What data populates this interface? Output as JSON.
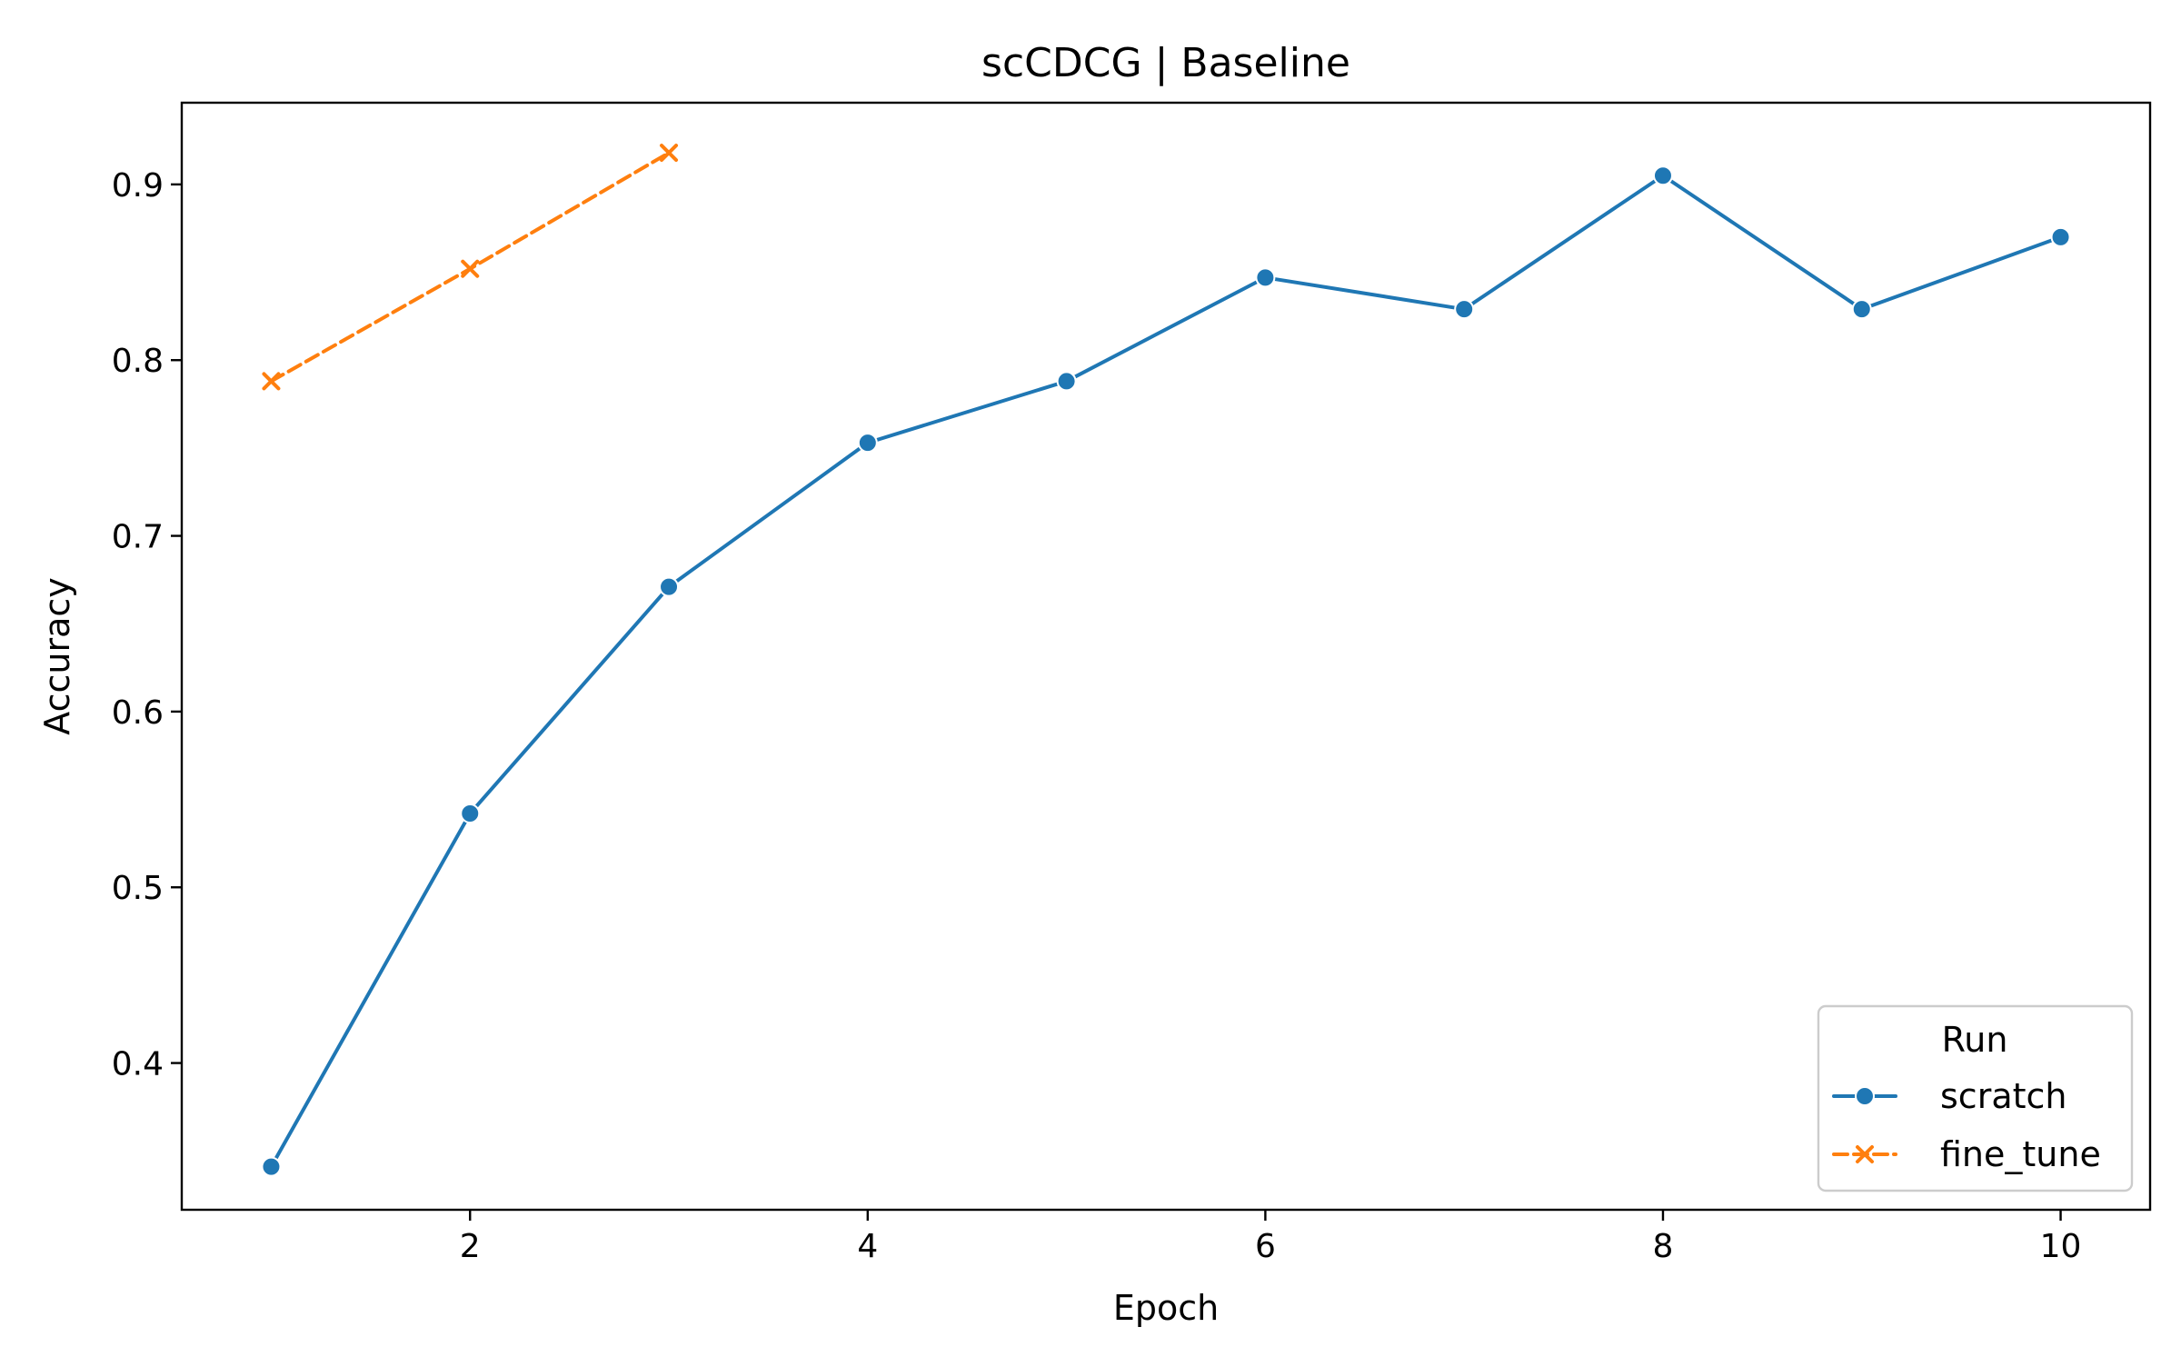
{
  "chart_data": {
    "type": "line",
    "title": "scCDCG | Baseline",
    "xlabel": "Epoch",
    "ylabel": "Accuracy",
    "xlim": [
      0.55,
      10.45
    ],
    "ylim": [
      0.3165,
      0.9465
    ],
    "x_ticks": [
      2,
      4,
      6,
      8,
      10
    ],
    "x_tick_labels": [
      "2",
      "4",
      "6",
      "8",
      "10"
    ],
    "y_ticks": [
      0.4,
      0.5,
      0.6,
      0.7,
      0.8,
      0.9
    ],
    "y_tick_labels": [
      "0.4",
      "0.5",
      "0.6",
      "0.7",
      "0.8",
      "0.9"
    ],
    "grid": false,
    "legend": {
      "title": "Run",
      "placement": "lower-right"
    },
    "series": [
      {
        "name": "scratch",
        "color": "#1f77b4",
        "line_style": "solid",
        "marker": "circle",
        "x": [
          1,
          2,
          3,
          4,
          5,
          6,
          7,
          8,
          9,
          10
        ],
        "y": [
          0.341,
          0.542,
          0.671,
          0.753,
          0.788,
          0.847,
          0.829,
          0.905,
          0.829,
          0.87
        ]
      },
      {
        "name": "fine_tune",
        "color": "#ff7f0e",
        "line_style": "dashed",
        "marker": "x",
        "x": [
          1,
          2,
          3
        ],
        "y": [
          0.788,
          0.852,
          0.918
        ]
      }
    ]
  }
}
